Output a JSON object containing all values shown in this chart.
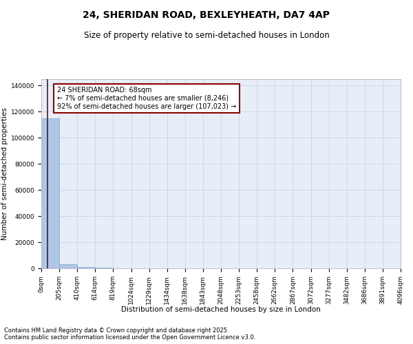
{
  "title": "24, SHERIDAN ROAD, BEXLEYHEATH, DA7 4AP",
  "subtitle": "Size of property relative to semi-detached houses in London",
  "xlabel": "Distribution of semi-detached houses by size in London",
  "ylabel": "Number of semi-detached properties",
  "property_size": 68,
  "annotation_text": "24 SHERIDAN ROAD: 68sqm\n← 7% of semi-detached houses are smaller (8,246)\n92% of semi-detached houses are larger (107,023) →",
  "bar_color": "#aec6e8",
  "bar_edgecolor": "#7fa8d0",
  "vline_color": "#8b0000",
  "annotation_edgecolor": "#8b0000",
  "grid_color": "#c8d4e8",
  "bg_color": "#e8eef8",
  "x_edges": [
    0,
    205,
    410,
    614,
    819,
    1024,
    1229,
    1434,
    1638,
    1843,
    2048,
    2253,
    2458,
    2662,
    2867,
    3072,
    3277,
    3482,
    3686,
    3891,
    4096
  ],
  "bar_heights": [
    115000,
    3200,
    800,
    400,
    200,
    120,
    80,
    60,
    45,
    35,
    28,
    22,
    18,
    15,
    12,
    10,
    9,
    8,
    7,
    6
  ],
  "ylim": [
    0,
    145000
  ],
  "yticks": [
    0,
    20000,
    40000,
    60000,
    80000,
    100000,
    120000,
    140000
  ],
  "xtick_labels": [
    "0sqm",
    "205sqm",
    "410sqm",
    "614sqm",
    "819sqm",
    "1024sqm",
    "1229sqm",
    "1434sqm",
    "1638sqm",
    "1843sqm",
    "2048sqm",
    "2253sqm",
    "2458sqm",
    "2662sqm",
    "2867sqm",
    "3072sqm",
    "3277sqm",
    "3482sqm",
    "3686sqm",
    "3891sqm",
    "4096sqm"
  ],
  "footer_text": "Contains HM Land Registry data © Crown copyright and database right 2025.\nContains public sector information licensed under the Open Government Licence v3.0.",
  "title_fontsize": 10,
  "subtitle_fontsize": 8.5,
  "annotation_fontsize": 7,
  "tick_fontsize": 6.5,
  "ylabel_fontsize": 7.5,
  "xlabel_fontsize": 7.5,
  "footer_fontsize": 6
}
